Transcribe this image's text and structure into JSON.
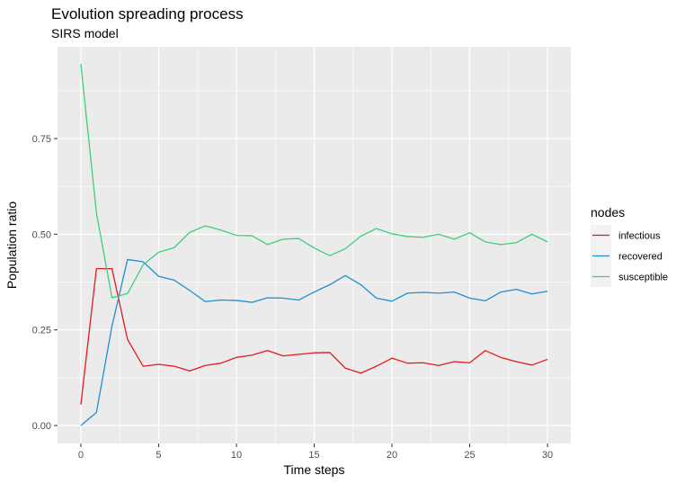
{
  "chart_data": {
    "type": "line",
    "title": "Evolution spreading process",
    "subtitle": "SIRS model",
    "xlabel": "Time steps",
    "ylabel": "Population ratio",
    "xlim": [
      -1.5,
      31.5
    ],
    "ylim": [
      -0.047,
      0.99
    ],
    "x_ticks": [
      0,
      5,
      10,
      15,
      20,
      25,
      30
    ],
    "x_tick_labels": [
      "0",
      "5",
      "10",
      "15",
      "20",
      "25",
      "30"
    ],
    "y_ticks": [
      0,
      0.25,
      0.5,
      0.75
    ],
    "y_tick_labels": [
      "0.00",
      "0.25",
      "0.50",
      "0.75"
    ],
    "grid": true,
    "legend": {
      "title": "nodes",
      "position": "right"
    },
    "x": [
      0,
      1,
      2,
      3,
      4,
      5,
      6,
      7,
      8,
      9,
      10,
      11,
      12,
      13,
      14,
      15,
      16,
      17,
      18,
      19,
      20,
      21,
      22,
      23,
      24,
      25,
      26,
      27,
      28,
      29,
      30
    ],
    "series": [
      {
        "name": "infectious",
        "color": "#e41a1c",
        "values": [
          0.055,
          0.41,
          0.41,
          0.225,
          0.155,
          0.16,
          0.155,
          0.143,
          0.157,
          0.163,
          0.178,
          0.184,
          0.196,
          0.182,
          0.186,
          0.19,
          0.191,
          0.15,
          0.137,
          0.155,
          0.176,
          0.163,
          0.164,
          0.157,
          0.167,
          0.164,
          0.196,
          0.178,
          0.167,
          0.158,
          0.173
        ]
      },
      {
        "name": "recovered",
        "color": "#1f8fcf",
        "values": [
          0.0,
          0.034,
          0.26,
          0.434,
          0.428,
          0.39,
          0.38,
          0.353,
          0.324,
          0.328,
          0.327,
          0.322,
          0.334,
          0.333,
          0.328,
          0.349,
          0.368,
          0.392,
          0.368,
          0.333,
          0.325,
          0.346,
          0.348,
          0.346,
          0.349,
          0.333,
          0.326,
          0.349,
          0.356,
          0.344,
          0.351
        ]
      },
      {
        "name": "susceptible",
        "color": "#3ecf7a",
        "values": [
          0.945,
          0.556,
          0.334,
          0.345,
          0.42,
          0.453,
          0.465,
          0.505,
          0.522,
          0.511,
          0.497,
          0.496,
          0.473,
          0.487,
          0.489,
          0.464,
          0.444,
          0.462,
          0.495,
          0.515,
          0.501,
          0.494,
          0.492,
          0.5,
          0.487,
          0.504,
          0.48,
          0.473,
          0.478,
          0.5,
          0.48
        ]
      }
    ]
  }
}
